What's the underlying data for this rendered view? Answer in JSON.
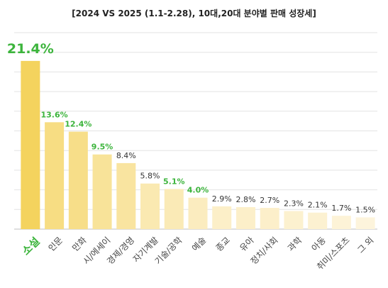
{
  "chart_data": {
    "type": "bar",
    "title": "[2024 VS 2025 (1.1-2.28), 10대,20대 분야별 판매 성장세]",
    "categories": [
      "소설",
      "인문",
      "만화",
      "시/에세이",
      "경제/경영",
      "자기계발",
      "기술/공학",
      "예술",
      "종교",
      "유아",
      "정치/사회",
      "과학",
      "아동",
      "취미/스포츠",
      "그 외"
    ],
    "values": [
      21.4,
      13.6,
      12.4,
      9.5,
      8.4,
      5.8,
      5.1,
      4.0,
      2.9,
      2.8,
      2.7,
      2.3,
      2.1,
      1.7,
      1.5
    ],
    "value_labels": [
      "21.4%",
      "13.6%",
      "12.4%",
      "9.5%",
      "8.4%",
      "5.8%",
      "5.1%",
      "4.0%",
      "2.9%",
      "2.8%",
      "2.7%",
      "2.3%",
      "2.1%",
      "1.7%",
      "1.5%"
    ],
    "highlighted_labels": [
      0,
      1,
      2,
      3,
      6,
      7
    ],
    "ylim": [
      0,
      25
    ],
    "grid": true,
    "y_ticks_shown": false,
    "colors": {
      "highlight_text": "#3cb43c",
      "normal_text": "#333333",
      "bar_max": "#f4d35e",
      "bar_min": "#fdf4dc",
      "grid": "#e3e3e3",
      "axis": "#bfbfbf"
    }
  }
}
